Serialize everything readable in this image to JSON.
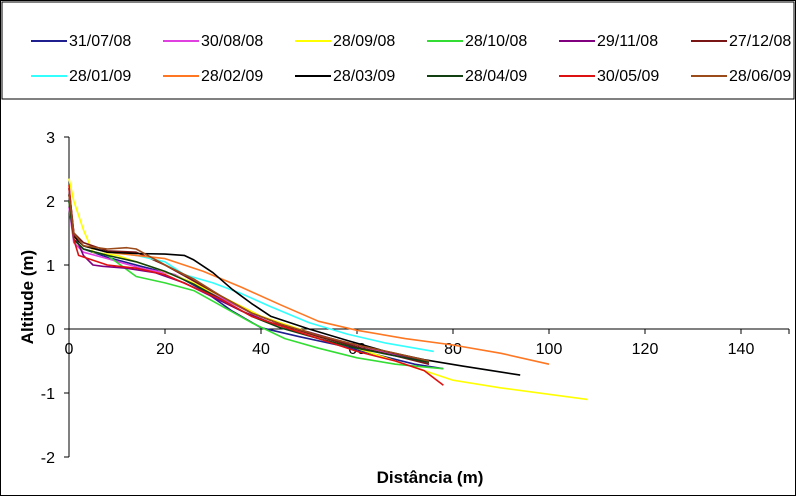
{
  "chart_data": {
    "type": "line",
    "title": "",
    "xlabel": "Distância (m)",
    "ylabel": "Altitude (m)",
    "xlim": [
      0,
      150
    ],
    "ylim": [
      -2,
      3
    ],
    "xticks": [
      0,
      20,
      40,
      60,
      80,
      100,
      120,
      140
    ],
    "yticks": [
      -2,
      -1,
      0,
      1,
      2,
      3
    ],
    "grid": false,
    "legend_position": "top",
    "series": [
      {
        "name": "31/07/08",
        "color": "#1f1f8f",
        "x": [
          0,
          1,
          3,
          8,
          15,
          22,
          28,
          34,
          40,
          48,
          56,
          64,
          72,
          78
        ],
        "y": [
          2.1,
          1.4,
          1.25,
          1.12,
          0.98,
          0.85,
          0.6,
          0.28,
          0.02,
          -0.12,
          -0.25,
          -0.4,
          -0.55,
          -0.62
        ]
      },
      {
        "name": "30/08/08",
        "color": "#e040e0",
        "x": [
          0,
          1,
          3,
          8,
          15,
          22,
          30,
          38,
          45,
          52,
          60,
          68,
          75
        ],
        "y": [
          1.9,
          1.35,
          1.2,
          1.1,
          0.95,
          0.85,
          0.55,
          0.25,
          0.05,
          -0.1,
          -0.25,
          -0.4,
          -0.55
        ]
      },
      {
        "name": "28/09/08",
        "color": "#ffff00",
        "x": [
          0,
          1,
          3,
          5,
          10,
          18,
          25,
          32,
          40,
          50,
          60,
          70,
          80,
          90,
          100,
          108
        ],
        "y": [
          2.35,
          2.0,
          1.55,
          1.2,
          1.15,
          0.95,
          0.75,
          0.5,
          0.2,
          -0.05,
          -0.3,
          -0.55,
          -0.8,
          -0.92,
          -1.02,
          -1.1
        ]
      },
      {
        "name": "28/10/08",
        "color": "#33dd33",
        "x": [
          0,
          1,
          3,
          8,
          14,
          20,
          26,
          32,
          38,
          45,
          52,
          60,
          68,
          75,
          78
        ],
        "y": [
          2.0,
          1.4,
          1.25,
          1.15,
          0.82,
          0.72,
          0.6,
          0.35,
          0.1,
          -0.15,
          -0.3,
          -0.45,
          -0.55,
          -0.6,
          -0.62
        ]
      },
      {
        "name": "29/11/08",
        "color": "#800080",
        "x": [
          0,
          1,
          3,
          5,
          7,
          12,
          18,
          24,
          30,
          36,
          42,
          50,
          58,
          66,
          74
        ],
        "y": [
          2.2,
          1.5,
          1.15,
          1.0,
          0.98,
          0.95,
          0.88,
          0.72,
          0.5,
          0.28,
          0.1,
          -0.05,
          -0.22,
          -0.35,
          -0.5
        ]
      },
      {
        "name": "27/12/08",
        "color": "#7a1515",
        "x": [
          0,
          1,
          3,
          8,
          14,
          20,
          26,
          32,
          38,
          45,
          52,
          60,
          68,
          75
        ],
        "y": [
          2.2,
          1.5,
          1.35,
          1.22,
          1.2,
          1.0,
          0.75,
          0.5,
          0.25,
          0.05,
          -0.12,
          -0.28,
          -0.42,
          -0.55
        ]
      },
      {
        "name": "28/01/09",
        "color": "#33ffff",
        "x": [
          0,
          1,
          3,
          8,
          14,
          20,
          24,
          30,
          36,
          42,
          50,
          58,
          66,
          76
        ],
        "y": [
          2.0,
          1.45,
          1.3,
          1.2,
          1.15,
          1.05,
          0.85,
          0.72,
          0.55,
          0.35,
          0.1,
          -0.08,
          -0.22,
          -0.35
        ]
      },
      {
        "name": "28/02/09",
        "color": "#ff7722",
        "x": [
          0,
          1,
          3,
          8,
          14,
          20,
          28,
          36,
          44,
          52,
          60,
          70,
          80,
          90,
          100
        ],
        "y": [
          2.0,
          1.45,
          1.3,
          1.2,
          1.15,
          1.1,
          0.9,
          0.65,
          0.38,
          0.12,
          -0.02,
          -0.15,
          -0.25,
          -0.38,
          -0.55
        ]
      },
      {
        "name": "28/03/09",
        "color": "#000000",
        "x": [
          0,
          1,
          3,
          8,
          14,
          20,
          24,
          26,
          30,
          34,
          38,
          42,
          50,
          58,
          66,
          74,
          82,
          88,
          94
        ],
        "y": [
          2.1,
          1.45,
          1.3,
          1.2,
          1.18,
          1.17,
          1.15,
          1.08,
          0.88,
          0.62,
          0.4,
          0.2,
          0.0,
          -0.18,
          -0.35,
          -0.48,
          -0.58,
          -0.65,
          -0.72
        ]
      },
      {
        "name": "28/04/09",
        "color": "#124012",
        "x": [
          0,
          1,
          3,
          8,
          14,
          20,
          26,
          32,
          38,
          44,
          52,
          60,
          68,
          75
        ],
        "y": [
          2.0,
          1.4,
          1.25,
          1.15,
          1.05,
          0.9,
          0.7,
          0.45,
          0.2,
          0.02,
          -0.15,
          -0.3,
          -0.42,
          -0.52
        ]
      },
      {
        "name": "30/05/09",
        "color": "#dd1111",
        "x": [
          0,
          1,
          2,
          4,
          8,
          14,
          20,
          26,
          32,
          38,
          44,
          52,
          60,
          68,
          74,
          78
        ],
        "y": [
          2.25,
          1.4,
          1.15,
          1.1,
          1.0,
          0.95,
          0.85,
          0.65,
          0.45,
          0.2,
          0.05,
          -0.15,
          -0.35,
          -0.5,
          -0.65,
          -0.88
        ]
      },
      {
        "name": "28/06/09",
        "color": "#9b4a1a",
        "x": [
          0,
          1,
          3,
          8,
          12,
          14,
          20,
          26,
          32,
          38,
          44,
          52,
          60,
          68,
          75
        ],
        "y": [
          2.1,
          1.5,
          1.3,
          1.25,
          1.27,
          1.25,
          1.0,
          0.78,
          0.5,
          0.25,
          0.08,
          -0.1,
          -0.25,
          -0.38,
          -0.5
        ]
      }
    ]
  }
}
